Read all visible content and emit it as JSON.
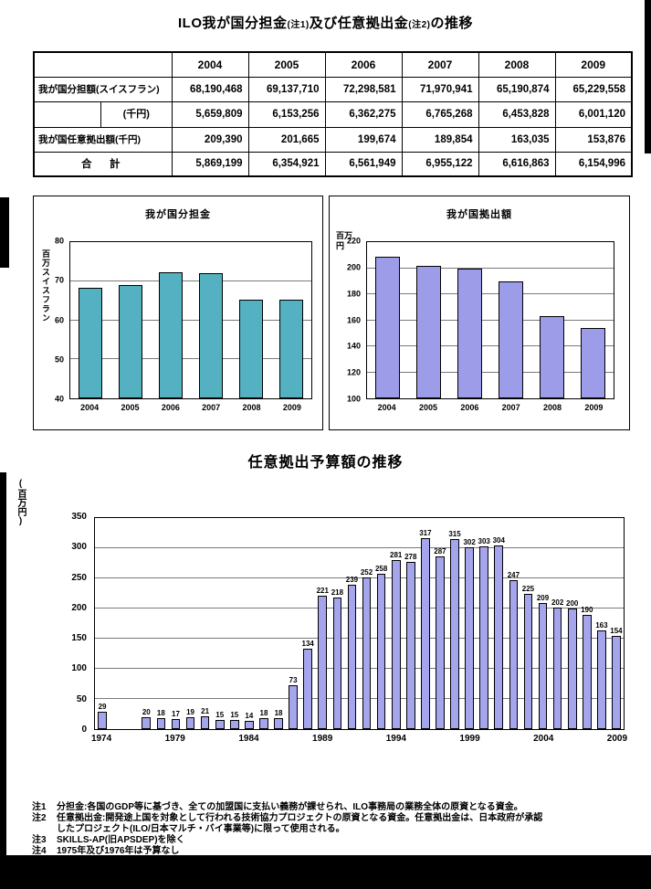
{
  "title": {
    "part1": "ILO我が国分担金",
    "note1": "(注1)",
    "part2": "及び任意拠出金",
    "note2": "(注2)",
    "part3": "の推移"
  },
  "table": {
    "col_headers": [
      "",
      "2004",
      "2005",
      "2006",
      "2007",
      "2008",
      "2009"
    ],
    "rows": [
      {
        "label": "我が国分担額(スイスフラン)",
        "values": [
          "68,190,468",
          "69,137,710",
          "72,298,581",
          "71,970,941",
          "65,190,874",
          "65,229,558"
        ]
      },
      {
        "label": "(千円)",
        "values": [
          "5,659,809",
          "6,153,256",
          "6,362,275",
          "6,765,268",
          "6,453,828",
          "6,001,120"
        ]
      },
      {
        "label": "我が国任意拠出額(千円)",
        "values": [
          "209,390",
          "201,665",
          "199,674",
          "189,854",
          "163,035",
          "153,876"
        ]
      },
      {
        "label": "合　計",
        "values": [
          "5,869,199",
          "6,354,921",
          "6,561,949",
          "6,955,122",
          "6,616,863",
          "6,154,996"
        ]
      }
    ]
  },
  "chart_data": [
    {
      "type": "bar",
      "title": "我が国分担金",
      "ylabel": "百万スイスフラン",
      "categories": [
        "2004",
        "2005",
        "2006",
        "2007",
        "2008",
        "2009"
      ],
      "values": [
        68.2,
        69.1,
        72.3,
        72.0,
        65.2,
        65.2
      ],
      "ylim": [
        40,
        80
      ],
      "ytick_step": 10,
      "grid": true,
      "data_labels": false,
      "bar_color": "#53b1c2"
    },
    {
      "type": "bar",
      "title": "我が国拠出額",
      "ylabel": "百万円",
      "categories": [
        "2004",
        "2005",
        "2006",
        "2007",
        "2008",
        "2009"
      ],
      "values": [
        209,
        202,
        200,
        190,
        163,
        154
      ],
      "ylim": [
        100,
        220
      ],
      "ytick_step": 20,
      "grid": true,
      "data_labels": false,
      "bar_color": "#9c9ce9"
    },
    {
      "type": "bar",
      "title": "任意拠出予算額の推移",
      "ylabel": "(百万円)",
      "categories": [
        "1974",
        "1975",
        "1976",
        "1977",
        "1978",
        "1979",
        "1980",
        "1981",
        "1982",
        "1983",
        "1984",
        "1985",
        "1986",
        "1987",
        "1988",
        "1989",
        "1990",
        "1991",
        "1992",
        "1993",
        "1994",
        "1995",
        "1996",
        "1997",
        "1998",
        "1999",
        "2000",
        "2001",
        "2002",
        "2003",
        "2004",
        "2005",
        "2006",
        "2007",
        "2008",
        "2009"
      ],
      "values": [
        29,
        null,
        null,
        20,
        18,
        17,
        19,
        21,
        15,
        15,
        14,
        18,
        18,
        73,
        134,
        221,
        218,
        239,
        252,
        258,
        281,
        278,
        317,
        287,
        315,
        302,
        303,
        304,
        247,
        225,
        209,
        202,
        200,
        190,
        163,
        154
      ],
      "ylim": [
        0,
        350
      ],
      "ytick_step": 50,
      "xtick_labels": [
        "1974",
        "1979",
        "1984",
        "1989",
        "1994",
        "1999",
        "2004",
        "2009"
      ],
      "grid": true,
      "data_labels": true,
      "bar_color": "#a5a5ec"
    }
  ],
  "footnotes": [
    {
      "tag": "注1",
      "text": "分担金:各国のGDP等に基づき、全ての加盟国に支払い義務が課せられ、ILO事務局の業務全体の原資となる資金。"
    },
    {
      "tag": "注2",
      "text": "任意拠出金:開発途上国を対象として行われる技術協力プロジェクトの原資となる資金。任意拠出金は、日本政府が承認\nしたプロジェクト(ILO/日本マルチ・バイ事業等)に限って使用される。"
    },
    {
      "tag": "注3",
      "text": "SKILLS-AP(旧APSDEP)を除く"
    },
    {
      "tag": "注4",
      "text": "1975年及び1976年は予算なし"
    }
  ]
}
